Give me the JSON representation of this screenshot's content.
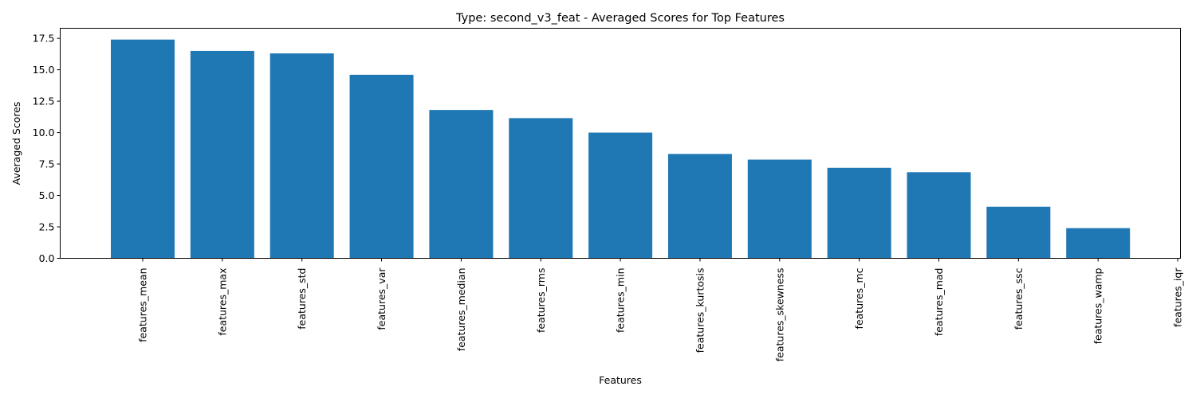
{
  "chart_data": {
    "type": "bar",
    "title": "Type: second_v3_feat - Averaged Scores for Top Features",
    "xlabel": "Features",
    "ylabel": "Averaged Scores",
    "categories": [
      "features_mean",
      "features_max",
      "features_std",
      "features_var",
      "features_median",
      "features_rms",
      "features_min",
      "features_kurtosis",
      "features_skewness",
      "features_mc",
      "features_mad",
      "features_ssc",
      "features_wamp",
      "features_iqr"
    ],
    "values": [
      17.4,
      16.5,
      16.3,
      14.6,
      11.8,
      11.15,
      10.0,
      8.3,
      7.85,
      7.2,
      6.85,
      4.1,
      2.4,
      0.0
    ],
    "ylim": [
      0,
      18.3
    ],
    "yticks": [
      "0.0",
      "2.5",
      "5.0",
      "7.5",
      "10.0",
      "12.5",
      "15.0",
      "17.5"
    ],
    "grid": false,
    "bar_color": "#1f77b4"
  }
}
